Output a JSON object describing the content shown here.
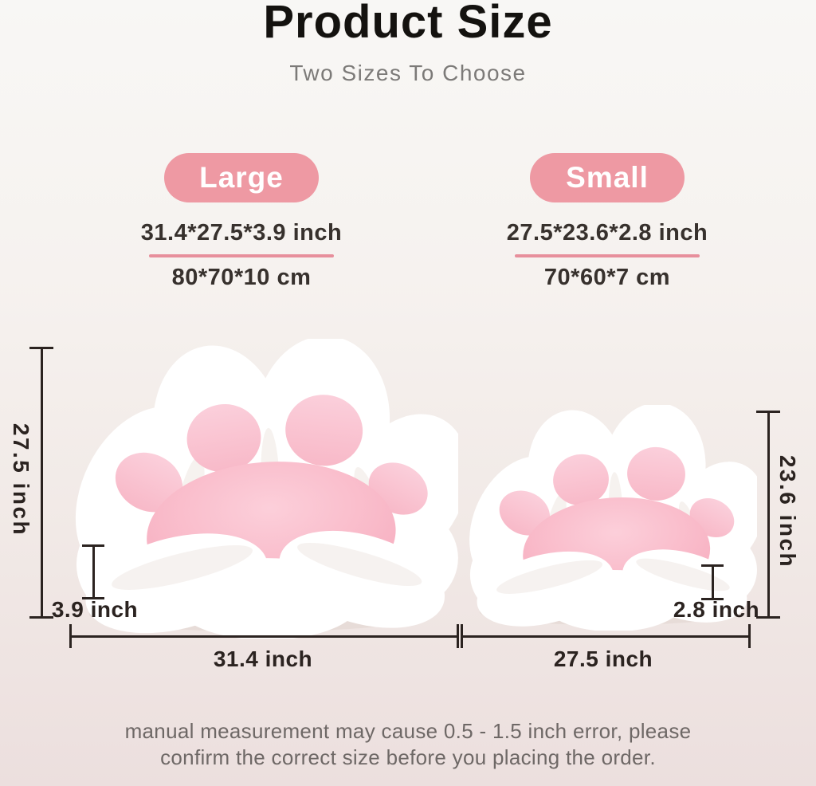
{
  "header": {
    "title": "Product Size",
    "subtitle": "Two Sizes To Choose"
  },
  "sizes": [
    {
      "name": "Large",
      "inch": "31.4*27.5*3.9 inch",
      "cm": "80*70*10 cm"
    },
    {
      "name": "Small",
      "inch": "27.5*23.6*2.8 inch",
      "cm": "70*60*7 cm"
    }
  ],
  "measurements": {
    "large": {
      "height": "27.5 inch",
      "thickness": "3.9 inch",
      "width": "31.4 inch"
    },
    "small": {
      "height": "23.6 inch",
      "thickness": "2.8 inch",
      "width": "27.5 inch"
    }
  },
  "note": {
    "line1": "manual measurement may cause 0.5 - 1.5 inch error, please",
    "line2": "confirm the correct size before you placing the order."
  },
  "icons": {
    "large_paw": "paw-cushion-photo",
    "small_paw": "paw-cushion-photo"
  },
  "colors": {
    "badge_pink": "#ee99a3",
    "underline_pink": "#e78f9c",
    "line_dark": "#2b2320",
    "cushion_white": "#ffffff",
    "pad_pink": "#f8bcca",
    "seat_pink": "#f9bac9",
    "background_top": "#f8f7f5",
    "background_bottom": "#ecdfde",
    "title_text": "#14120f",
    "subtitle_text": "#7c7a78",
    "note_text": "#6e6866"
  }
}
